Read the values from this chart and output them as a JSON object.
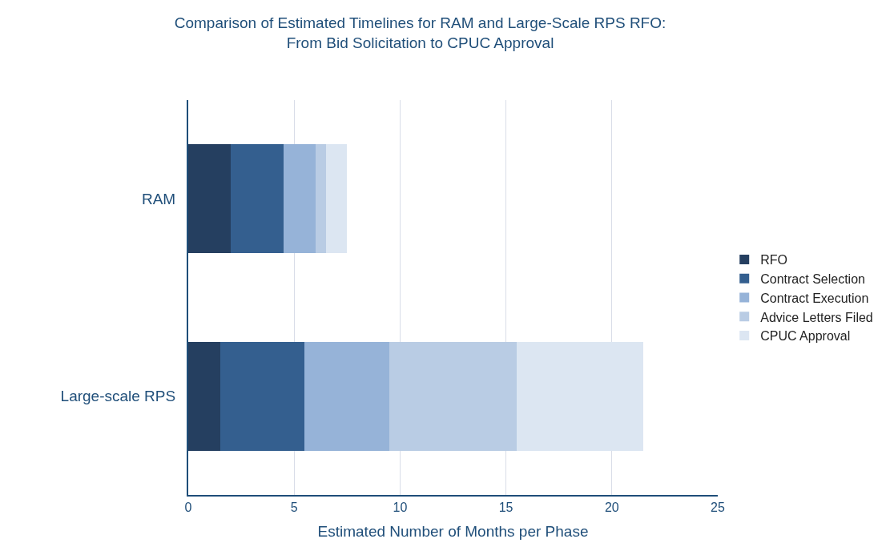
{
  "chart_data": {
    "type": "bar",
    "orientation": "horizontal",
    "stacked": true,
    "title": "Comparison of Estimated Timelines for RAM and Large-Scale RPS RFO:\nFrom Bid Solicitation to CPUC Approval",
    "xlabel": "Estimated Number of Months per Phase",
    "categories": [
      "RAM",
      "Large-scale RPS"
    ],
    "series": [
      {
        "name": "RFO",
        "color": "#253f60",
        "values": [
          2,
          1.5
        ]
      },
      {
        "name": "Contract Selection",
        "color": "#345f8f",
        "values": [
          2.5,
          4
        ]
      },
      {
        "name": "Contract Execution",
        "color": "#96b3d8",
        "values": [
          1.5,
          4
        ]
      },
      {
        "name": "Advice Letters Filed",
        "color": "#b9cce4",
        "values": [
          0.5,
          6
        ]
      },
      {
        "name": "CPUC Approval",
        "color": "#dce6f2",
        "values": [
          1,
          6
        ]
      }
    ],
    "xlim": [
      0,
      25
    ],
    "xticks": [
      0,
      5,
      10,
      15,
      20,
      25
    ],
    "grid": "x",
    "legend": "right"
  }
}
